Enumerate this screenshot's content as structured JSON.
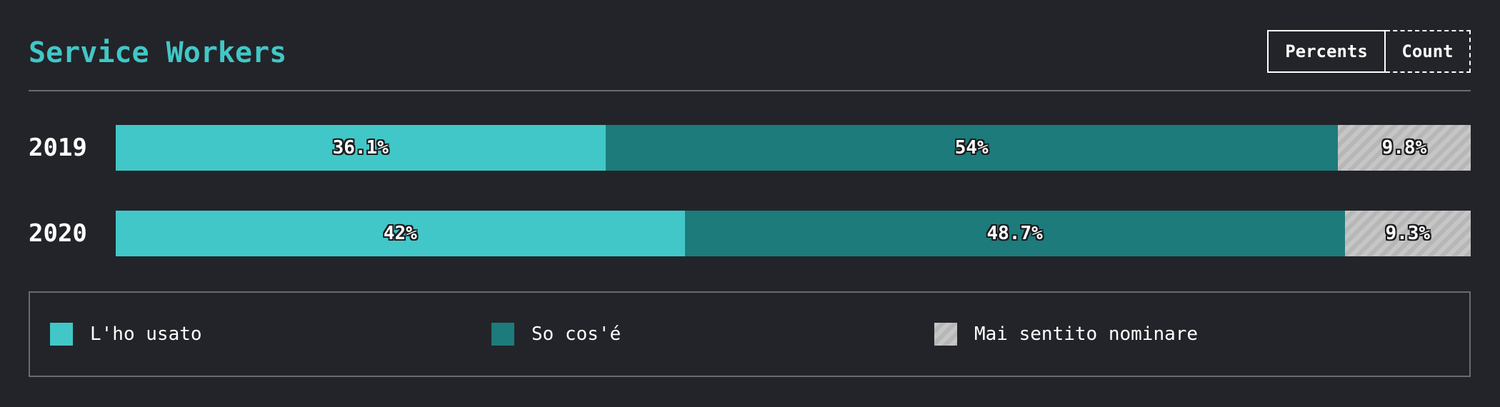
{
  "header": {
    "title": "Service Workers",
    "toggle": {
      "percents_label": "Percents",
      "count_label": "Count",
      "active": "Percents"
    }
  },
  "colors": {
    "background": "#232429",
    "used": "#41c7c7",
    "know": "#1d7b7b",
    "never": "#c6c6c6"
  },
  "chart_data": {
    "type": "bar",
    "orientation": "horizontal",
    "stacked": true,
    "normalized": true,
    "categories": [
      "2019",
      "2020"
    ],
    "series": [
      {
        "name": "L'ho usato",
        "values": [
          36.1,
          42
        ],
        "labels": [
          "36.1%",
          "42%"
        ]
      },
      {
        "name": "So cos'é",
        "values": [
          54,
          48.7
        ],
        "labels": [
          "54%",
          "48.7%"
        ]
      },
      {
        "name": "Mai sentito nominare",
        "values": [
          9.8,
          9.3
        ],
        "labels": [
          "9.8%",
          "9.3%"
        ]
      }
    ],
    "xlim": [
      0,
      100
    ],
    "legend_position": "bottom"
  }
}
